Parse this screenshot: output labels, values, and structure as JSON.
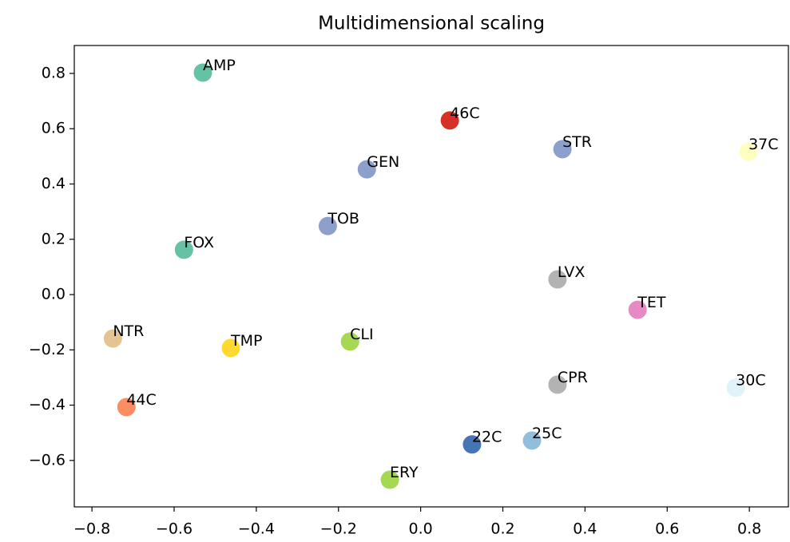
{
  "chart_data": {
    "type": "scatter",
    "title": "Multidimensional scaling",
    "labels": [
      "AMP",
      "46C",
      "STR",
      "37C",
      "GEN",
      "TOB",
      "FOX",
      "LVX",
      "TET",
      "NTR",
      "TMP",
      "CLI",
      "CPR",
      "30C",
      "44C",
      "22C",
      "25C",
      "ERY"
    ],
    "x": [
      -0.53,
      0.071,
      0.345,
      0.798,
      -0.131,
      -0.226,
      -0.576,
      0.333,
      0.528,
      -0.749,
      -0.462,
      -0.172,
      0.333,
      0.767,
      -0.716,
      0.125,
      0.271,
      -0.075
    ],
    "y": [
      0.803,
      0.63,
      0.526,
      0.517,
      0.453,
      0.248,
      0.162,
      0.055,
      -0.055,
      -0.159,
      -0.193,
      -0.17,
      -0.326,
      -0.337,
      -0.407,
      -0.542,
      -0.528,
      -0.67
    ],
    "colors": [
      "#66c2a5",
      "#d73027",
      "#8da0cb",
      "#ffffbf",
      "#8da0cb",
      "#8da0cb",
      "#66c2a5",
      "#b3b3b3",
      "#e78ac3",
      "#e5c494",
      "#ffd92f",
      "#a6d854",
      "#b3b3b3",
      "#e0f3f8",
      "#fc8d62",
      "#4575b4",
      "#91bfdb",
      "#a6d854"
    ],
    "xlim": [
      -0.843,
      0.895
    ],
    "ylim": [
      -0.768,
      0.901
    ],
    "xticks": [
      {
        "value": -0.8,
        "label": "−0.8"
      },
      {
        "value": -0.6,
        "label": "−0.6"
      },
      {
        "value": -0.4,
        "label": "−0.4"
      },
      {
        "value": -0.2,
        "label": "−0.2"
      },
      {
        "value": 0,
        "label": "0.0"
      },
      0.2,
      0.4,
      0.6,
      0.8
    ],
    "yticks": [
      {
        "value": -0.6,
        "label": "−0.6"
      },
      {
        "value": -0.4,
        "label": "−0.4"
      },
      {
        "value": -0.2,
        "label": "−0.2"
      },
      {
        "value": 0,
        "label": "0.0"
      },
      0.2,
      0.4,
      0.6,
      0.8
    ]
  }
}
